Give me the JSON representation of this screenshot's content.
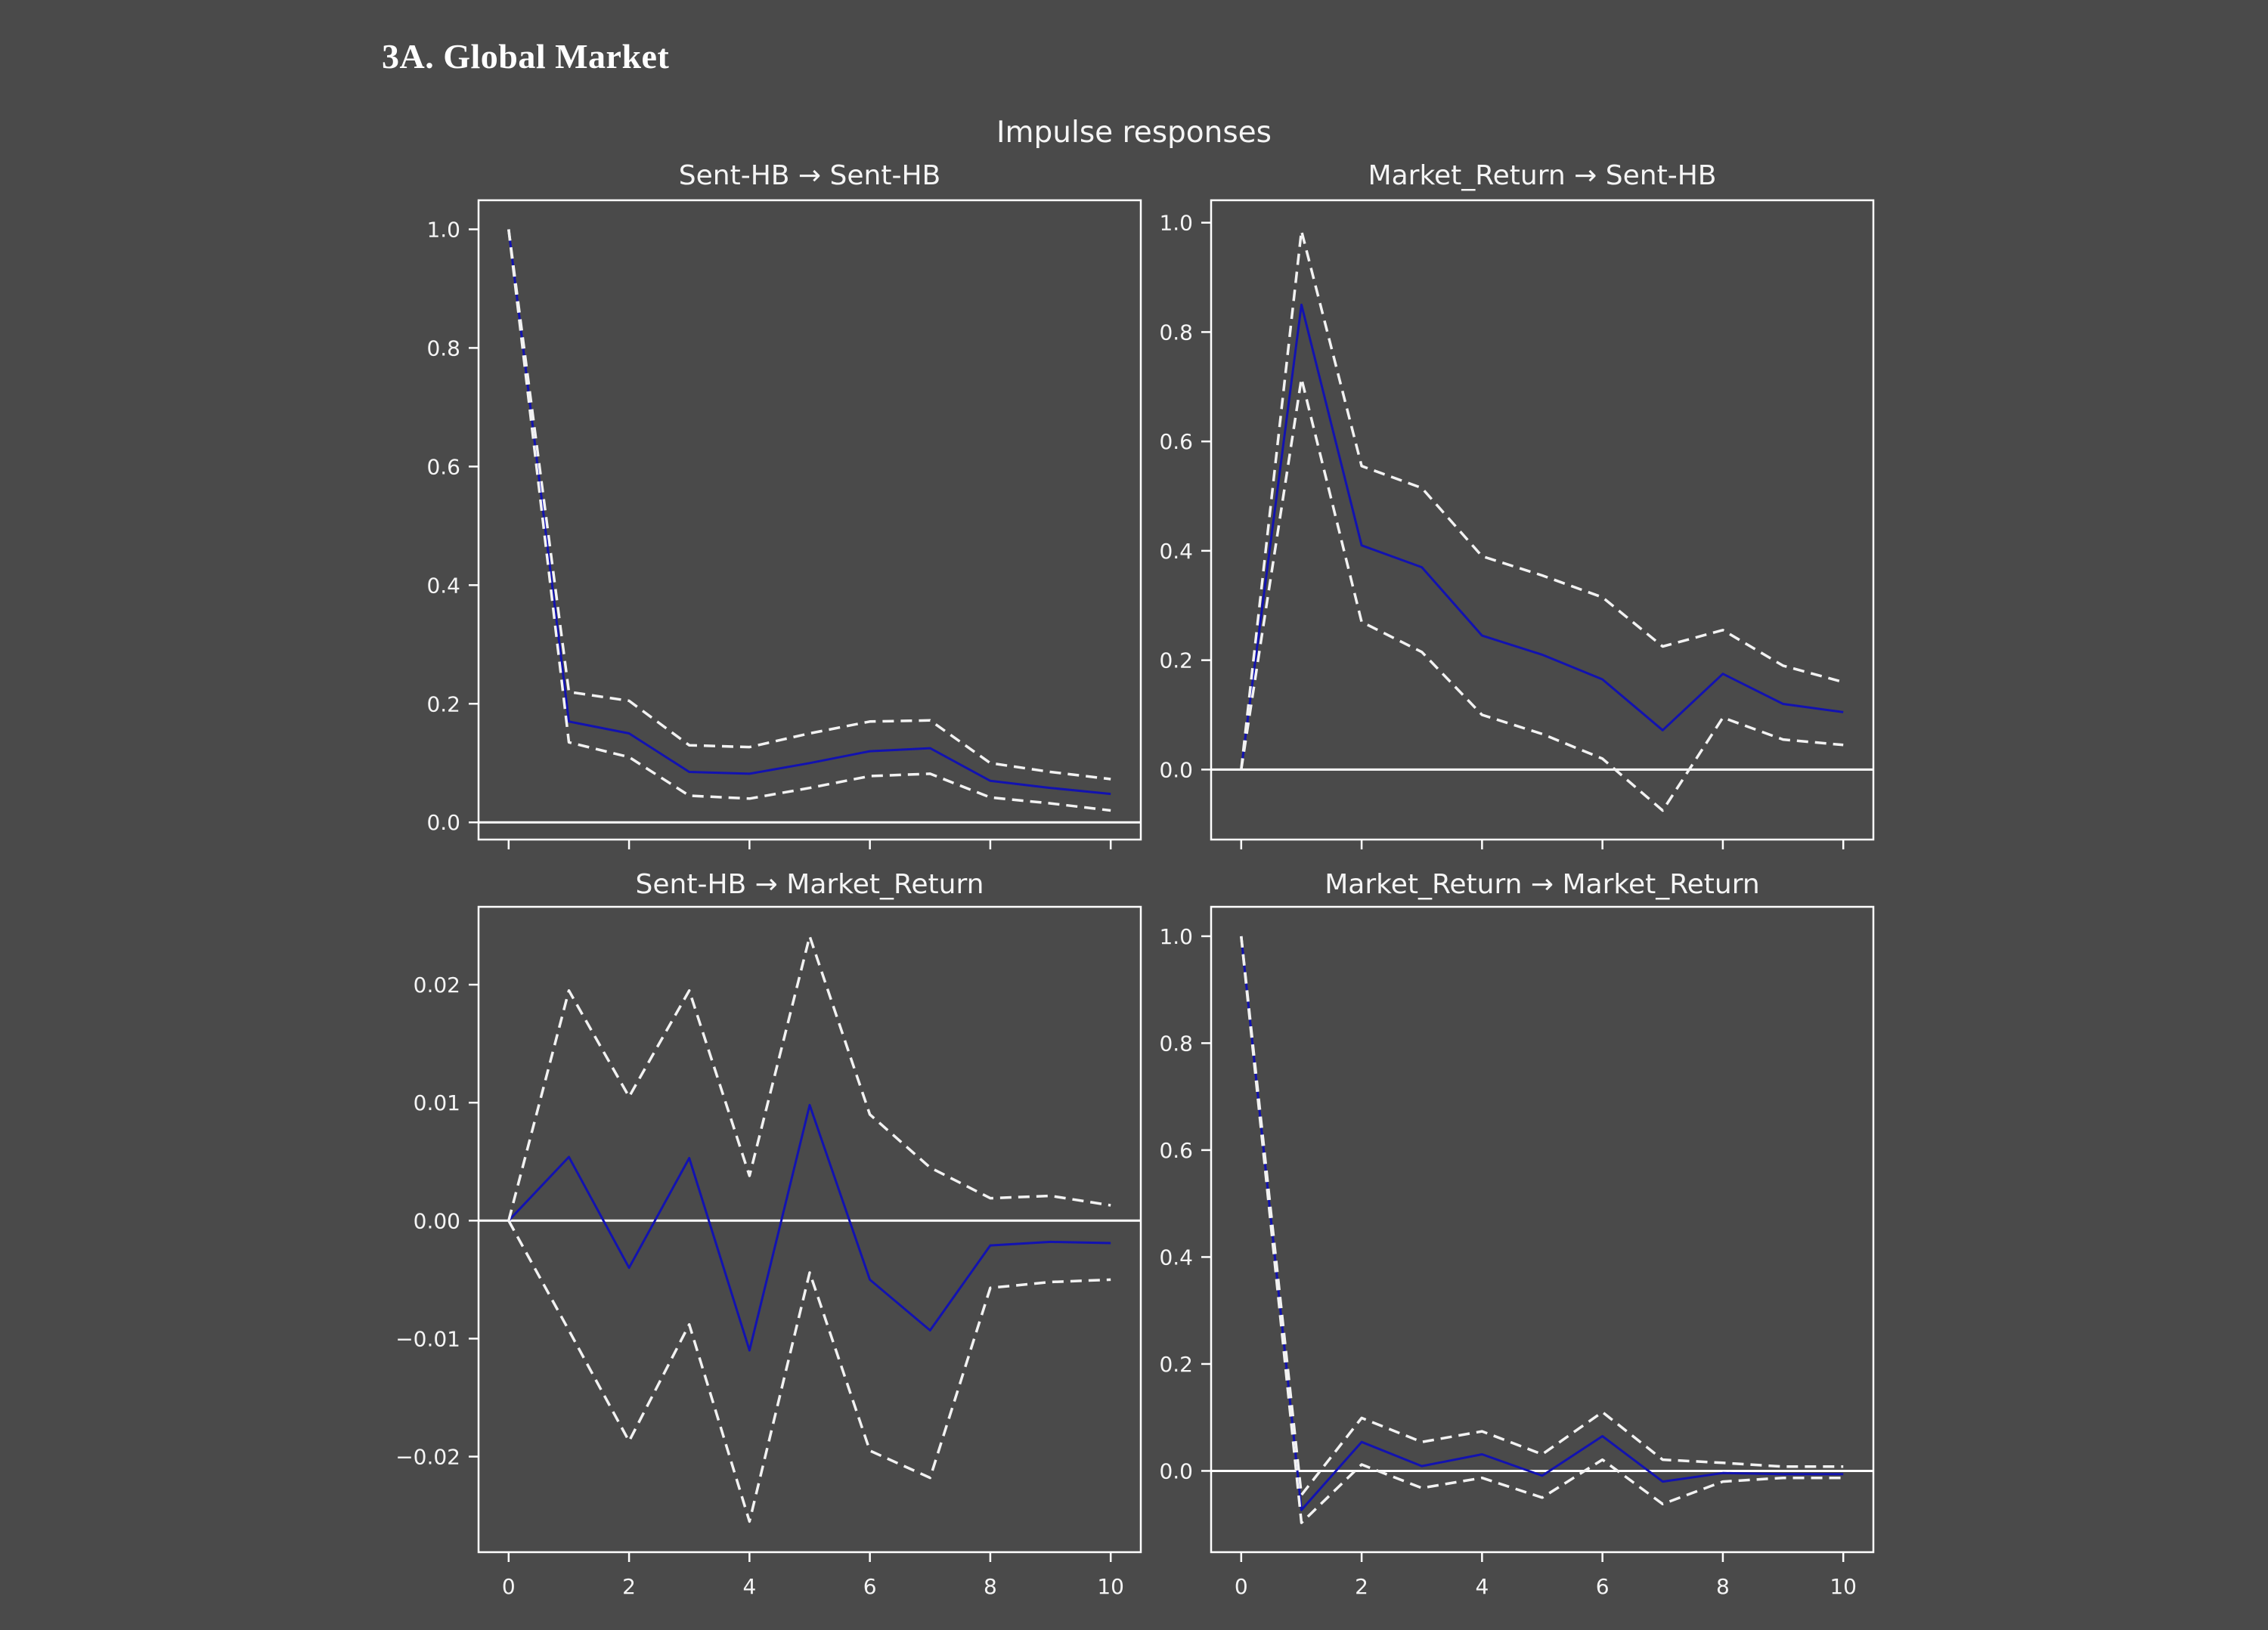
{
  "page": {
    "heading": "3A. Global Market"
  },
  "figure": {
    "suptitle": "Impulse responses",
    "background_color": "#4a4a4a",
    "text_color": "#f5f5f5",
    "spine_color": "#ffffff",
    "irf_color": "#1212b0",
    "ci_color": "#f2f2f2",
    "zero_line_color": "#ffffff"
  },
  "chart_data": [
    {
      "type": "line",
      "title": "Sent-HB → Sent-HB",
      "impulse": "Sent-HB",
      "response": "Sent-HB",
      "x": [
        0,
        1,
        2,
        3,
        4,
        5,
        6,
        7,
        8,
        9,
        10
      ],
      "xlim": [
        -0.5,
        10.5
      ],
      "ylim": [
        -0.029,
        1.049
      ],
      "grid": false,
      "legend": null,
      "xticks": [
        {
          "v": 0,
          "label": "0"
        },
        {
          "v": 2,
          "label": "2"
        },
        {
          "v": 4,
          "label": "4"
        },
        {
          "v": 6,
          "label": "6"
        },
        {
          "v": 8,
          "label": "8"
        },
        {
          "v": 10,
          "label": "10"
        }
      ],
      "x_tick_labels_visible": false,
      "yticks": [
        {
          "v": 1.0,
          "label": "1.0"
        },
        {
          "v": 0.8,
          "label": "0.8"
        },
        {
          "v": 0.6,
          "label": "0.6"
        },
        {
          "v": 0.4,
          "label": "0.4"
        },
        {
          "v": 0.2,
          "label": "0.2"
        },
        {
          "v": 0.0,
          "label": "0.0"
        }
      ],
      "series": [
        {
          "name": "irf",
          "style": "solid",
          "color_key": "irf_color",
          "values": [
            1.0,
            0.17,
            0.15,
            0.085,
            0.082,
            0.1,
            0.12,
            0.125,
            0.07,
            0.058,
            0.048
          ]
        },
        {
          "name": "upper_ci",
          "style": "dashed",
          "color_key": "ci_color",
          "values": [
            1.0,
            0.22,
            0.205,
            0.13,
            0.127,
            0.15,
            0.17,
            0.172,
            0.1,
            0.085,
            0.073
          ]
        },
        {
          "name": "lower_ci",
          "style": "dashed",
          "color_key": "ci_color",
          "values": [
            1.0,
            0.135,
            0.11,
            0.045,
            0.04,
            0.058,
            0.078,
            0.082,
            0.042,
            0.032,
            0.02
          ]
        }
      ]
    },
    {
      "type": "line",
      "title": "Market_Return → Sent-HB",
      "impulse": "Market_Return",
      "response": "Sent-HB",
      "x": [
        0,
        1,
        2,
        3,
        4,
        5,
        6,
        7,
        8,
        9,
        10
      ],
      "xlim": [
        -0.5,
        10.5
      ],
      "ylim": [
        -0.128,
        1.041
      ],
      "grid": false,
      "legend": null,
      "xticks": [
        {
          "v": 0,
          "label": "0"
        },
        {
          "v": 2,
          "label": "2"
        },
        {
          "v": 4,
          "label": "4"
        },
        {
          "v": 6,
          "label": "6"
        },
        {
          "v": 8,
          "label": "8"
        },
        {
          "v": 10,
          "label": "10"
        }
      ],
      "x_tick_labels_visible": false,
      "yticks": [
        {
          "v": 1.0,
          "label": "1.0"
        },
        {
          "v": 0.8,
          "label": "0.8"
        },
        {
          "v": 0.6,
          "label": "0.6"
        },
        {
          "v": 0.4,
          "label": "0.4"
        },
        {
          "v": 0.2,
          "label": "0.2"
        },
        {
          "v": 0.0,
          "label": "0.0"
        }
      ],
      "series": [
        {
          "name": "irf",
          "style": "solid",
          "color_key": "irf_color",
          "values": [
            0.0,
            0.85,
            0.41,
            0.37,
            0.245,
            0.21,
            0.165,
            0.072,
            0.175,
            0.12,
            0.105
          ]
        },
        {
          "name": "upper_ci",
          "style": "dashed",
          "color_key": "ci_color",
          "values": [
            0.0,
            0.985,
            0.555,
            0.515,
            0.39,
            0.355,
            0.315,
            0.225,
            0.255,
            0.19,
            0.16
          ]
        },
        {
          "name": "lower_ci",
          "style": "dashed",
          "color_key": "ci_color",
          "values": [
            0.0,
            0.715,
            0.27,
            0.215,
            0.1,
            0.065,
            0.02,
            -0.075,
            0.095,
            0.055,
            0.045
          ]
        }
      ]
    },
    {
      "type": "line",
      "title": "Sent-HB → Market_Return",
      "impulse": "Sent-HB",
      "response": "Market_Return",
      "x": [
        0,
        1,
        2,
        3,
        4,
        5,
        6,
        7,
        8,
        9,
        10
      ],
      "xlim": [
        -0.5,
        10.5
      ],
      "ylim": [
        -0.0281,
        0.0266
      ],
      "grid": false,
      "legend": null,
      "xticks": [
        {
          "v": 0,
          "label": "0"
        },
        {
          "v": 2,
          "label": "2"
        },
        {
          "v": 4,
          "label": "4"
        },
        {
          "v": 6,
          "label": "6"
        },
        {
          "v": 8,
          "label": "8"
        },
        {
          "v": 10,
          "label": "10"
        }
      ],
      "x_tick_labels_visible": true,
      "yticks": [
        {
          "v": 0.02,
          "label": "0.02"
        },
        {
          "v": 0.01,
          "label": "0.01"
        },
        {
          "v": 0.0,
          "label": "0.00"
        },
        {
          "v": -0.01,
          "label": "−0.01"
        },
        {
          "v": -0.02,
          "label": "−0.02"
        }
      ],
      "series": [
        {
          "name": "irf",
          "style": "solid",
          "color_key": "irf_color",
          "values": [
            0.0,
            0.0054,
            -0.004,
            0.0053,
            -0.011,
            0.0098,
            -0.005,
            -0.0093,
            -0.0021,
            -0.0018,
            -0.0019
          ]
        },
        {
          "name": "upper_ci",
          "style": "dashed",
          "color_key": "ci_color",
          "values": [
            0.0,
            0.0195,
            0.0105,
            0.0195,
            0.0038,
            0.0241,
            0.009,
            0.0045,
            0.0019,
            0.0021,
            0.0013
          ]
        },
        {
          "name": "lower_ci",
          "style": "dashed",
          "color_key": "ci_color",
          "values": [
            0.0,
            -0.0093,
            -0.0187,
            -0.0088,
            -0.0255,
            -0.0044,
            -0.0195,
            -0.0218,
            -0.0057,
            -0.0052,
            -0.005
          ]
        }
      ]
    },
    {
      "type": "line",
      "title": "Market_Return → Market_Return",
      "impulse": "Market_Return",
      "response": "Market_Return",
      "x": [
        0,
        1,
        2,
        3,
        4,
        5,
        6,
        7,
        8,
        9,
        10
      ],
      "xlim": [
        -0.5,
        10.5
      ],
      "ylim": [
        -0.152,
        1.055
      ],
      "grid": false,
      "legend": null,
      "xticks": [
        {
          "v": 0,
          "label": "0"
        },
        {
          "v": 2,
          "label": "2"
        },
        {
          "v": 4,
          "label": "4"
        },
        {
          "v": 6,
          "label": "6"
        },
        {
          "v": 8,
          "label": "8"
        },
        {
          "v": 10,
          "label": "10"
        }
      ],
      "x_tick_labels_visible": true,
      "yticks": [
        {
          "v": 1.0,
          "label": "1.0"
        },
        {
          "v": 0.8,
          "label": "0.8"
        },
        {
          "v": 0.6,
          "label": "0.6"
        },
        {
          "v": 0.4,
          "label": "0.4"
        },
        {
          "v": 0.2,
          "label": "0.2"
        },
        {
          "v": 0.0,
          "label": "0.0"
        }
      ],
      "series": [
        {
          "name": "irf",
          "style": "solid",
          "color_key": "irf_color",
          "values": [
            1.0,
            -0.073,
            0.054,
            0.009,
            0.031,
            -0.009,
            0.065,
            -0.02,
            -0.004,
            -0.006,
            -0.006
          ]
        },
        {
          "name": "upper_ci",
          "style": "dashed",
          "color_key": "ci_color",
          "values": [
            1.0,
            -0.045,
            0.099,
            0.054,
            0.074,
            0.031,
            0.11,
            0.021,
            0.015,
            0.008,
            0.008
          ]
        },
        {
          "name": "lower_ci",
          "style": "dashed",
          "color_key": "ci_color",
          "values": [
            1.0,
            -0.097,
            0.012,
            -0.032,
            -0.013,
            -0.05,
            0.021,
            -0.062,
            -0.02,
            -0.013,
            -0.013
          ]
        }
      ]
    }
  ]
}
